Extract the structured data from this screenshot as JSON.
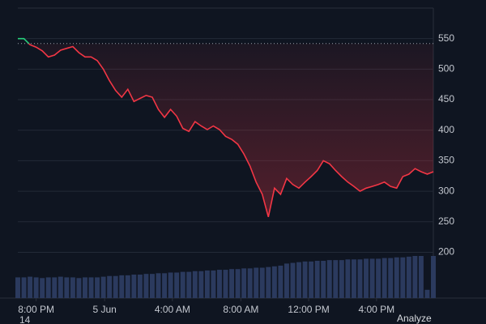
{
  "chart_data": {
    "type": "line",
    "values": [
      550,
      550,
      540,
      536,
      530,
      520,
      523,
      531,
      534,
      537,
      527,
      520,
      520,
      514,
      500,
      481,
      465,
      454,
      467,
      447,
      452,
      457,
      454,
      434,
      421,
      434,
      423,
      403,
      398,
      414,
      407,
      401,
      407,
      401,
      390,
      385,
      377,
      361,
      341,
      315,
      295,
      258,
      305,
      295,
      321,
      311,
      305,
      315,
      324,
      334,
      350,
      345,
      334,
      324,
      315,
      308,
      300,
      305,
      308,
      311,
      315,
      308,
      305,
      324,
      328,
      337,
      332,
      328,
      332
    ],
    "volume": [
      30,
      30,
      31,
      30,
      29,
      30,
      30,
      31,
      30,
      30,
      29,
      30,
      30,
      30,
      31,
      32,
      32,
      33,
      33,
      34,
      34,
      35,
      35,
      36,
      36,
      37,
      37,
      38,
      38,
      39,
      39,
      40,
      40,
      41,
      41,
      42,
      42,
      43,
      43,
      44,
      44,
      45,
      46,
      47,
      50,
      51,
      52,
      53,
      53,
      54,
      54,
      55,
      55,
      55,
      56,
      56,
      56,
      57,
      57,
      57,
      58,
      58,
      59,
      59,
      60,
      61,
      61,
      12,
      61
    ],
    "color": "#f23645",
    "color_above": "#26d07c",
    "baseline": 542,
    "xlim": [
      0,
      68
    ],
    "xticks": [
      {
        "value": 3,
        "label": "8:00 PM"
      },
      {
        "value": 14.2,
        "label": "5 Jun"
      },
      {
        "value": 25.3,
        "label": "4:00 AM"
      },
      {
        "value": 36.5,
        "label": "8:00 AM"
      },
      {
        "value": 47.6,
        "label": "12:00 PM"
      },
      {
        "value": 58.7,
        "label": "4:00 PM"
      }
    ],
    "ylim": [
      125,
      600
    ],
    "yticks": [
      200,
      250,
      300,
      350,
      400,
      450,
      500,
      550
    ],
    "grid": true,
    "cut_labels": [
      "14",
      "Analyze"
    ]
  }
}
